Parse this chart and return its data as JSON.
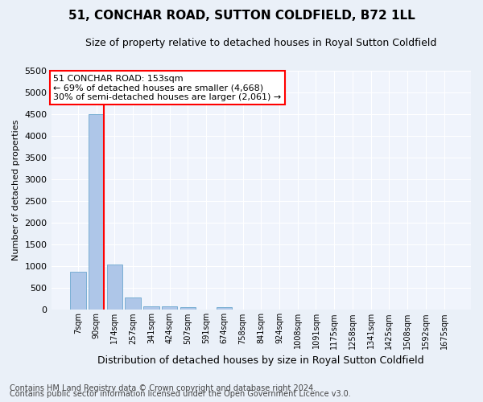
{
  "title": "51, CONCHAR ROAD, SUTTON COLDFIELD, B72 1LL",
  "subtitle": "Size of property relative to detached houses in Royal Sutton Coldfield",
  "xlabel": "Distribution of detached houses by size in Royal Sutton Coldfield",
  "ylabel": "Number of detached properties",
  "footnote1": "Contains HM Land Registry data © Crown copyright and database right 2024.",
  "footnote2": "Contains public sector information licensed under the Open Government Licence v3.0.",
  "bar_labels": [
    "7sqm",
    "90sqm",
    "174sqm",
    "257sqm",
    "341sqm",
    "424sqm",
    "507sqm",
    "591sqm",
    "674sqm",
    "758sqm",
    "841sqm",
    "924sqm",
    "1008sqm",
    "1091sqm",
    "1175sqm",
    "1258sqm",
    "1341sqm",
    "1425sqm",
    "1508sqm",
    "1592sqm",
    "1675sqm"
  ],
  "bar_values": [
    880,
    4500,
    1050,
    280,
    90,
    80,
    60,
    0,
    55,
    0,
    0,
    0,
    0,
    0,
    0,
    0,
    0,
    0,
    0,
    0,
    0
  ],
  "bar_color": "#aec6e8",
  "bar_edgecolor": "#7aafd4",
  "vline_color": "red",
  "vline_x": 1.42,
  "ylim": [
    0,
    5500
  ],
  "yticks": [
    0,
    500,
    1000,
    1500,
    2000,
    2500,
    3000,
    3500,
    4000,
    4500,
    5000,
    5500
  ],
  "annotation_text": "51 CONCHAR ROAD: 153sqm\n← 69% of detached houses are smaller (4,668)\n30% of semi-detached houses are larger (2,061) →",
  "annotation_box_color": "white",
  "annotation_box_edgecolor": "red",
  "bg_color": "#eaf0f8",
  "plot_bg_color": "#f0f4fc",
  "title_fontsize": 11,
  "subtitle_fontsize": 9,
  "ylabel_fontsize": 8,
  "xlabel_fontsize": 9,
  "tick_fontsize": 7,
  "annotation_fontsize": 8,
  "footnote_fontsize": 7
}
